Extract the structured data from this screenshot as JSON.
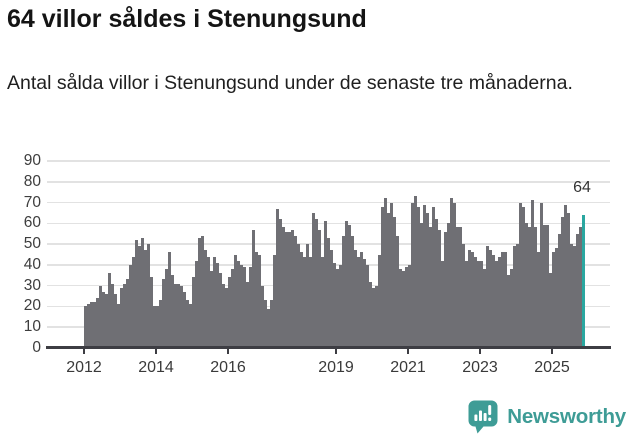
{
  "header": {
    "title": "64 villor såldes i Stenungsund",
    "subtitle": "Antal sålda villor i Stenungsund under de senaste tre månaderna."
  },
  "annotation": {
    "last_value_label": "64"
  },
  "footer": {
    "brand": "Newsworthy",
    "logo_icon": "chart-speech-bubble-icon"
  },
  "colors": {
    "bar": "#6f6f74",
    "highlight": "#2aa7a0",
    "gridline": "#e2e2e2",
    "axis": "#3d3d43",
    "text": "#3a3a3a",
    "brand": "#3e9c96"
  },
  "chart_data": {
    "type": "bar",
    "title": "64 villor såldes i Stenungsund",
    "subtitle": "Antal sålda villor i Stenungsund under de senaste tre månaderna.",
    "xlabel": "",
    "ylabel": "",
    "grid": true,
    "ylim": [
      0,
      93
    ],
    "yticks": [
      0,
      10,
      20,
      30,
      40,
      50,
      60,
      70,
      80,
      90
    ],
    "start_month": "2012-01",
    "end_month": "2025-11",
    "values": [
      20,
      21,
      22,
      22,
      24,
      30,
      27,
      26,
      36,
      31,
      26,
      21,
      29,
      31,
      33,
      40,
      44,
      52,
      49,
      53,
      47,
      50,
      34,
      20,
      20,
      23,
      33,
      38,
      46,
      35,
      31,
      31,
      30,
      27,
      23,
      21,
      34,
      42,
      53,
      54,
      47,
      44,
      37,
      44,
      41,
      36,
      31,
      29,
      34,
      38,
      45,
      42,
      40,
      39,
      32,
      39,
      57,
      46,
      45,
      30,
      23,
      19,
      23,
      45,
      67,
      62,
      58,
      56,
      56,
      57,
      54,
      50,
      46,
      44,
      50,
      44,
      65,
      62,
      57,
      44,
      61,
      53,
      47,
      41,
      38,
      40,
      54,
      61,
      59,
      54,
      47,
      44,
      46,
      43,
      40,
      32,
      29,
      30,
      45,
      68,
      72,
      65,
      70,
      63,
      54,
      38,
      37,
      39,
      40,
      70,
      73,
      68,
      60,
      69,
      65,
      58,
      68,
      62,
      57,
      42,
      56,
      60,
      72,
      70,
      58,
      58,
      50,
      42,
      47,
      46,
      44,
      42,
      42,
      38,
      49,
      47,
      45,
      42,
      44,
      46,
      46,
      35,
      38,
      49,
      50,
      70,
      68,
      60,
      58,
      71,
      58,
      46,
      70,
      59,
      59,
      36,
      46,
      48,
      55,
      63,
      69,
      65,
      50,
      49,
      55,
      58,
      64
    ],
    "highlight_last": {
      "value": 64,
      "label": "64"
    },
    "xticks": [
      {
        "label": "2012",
        "month_index": 0
      },
      {
        "label": "2014",
        "month_index": 24
      },
      {
        "label": "2016",
        "month_index": 48
      },
      {
        "label": "2019",
        "month_index": 84
      },
      {
        "label": "2021",
        "month_index": 108
      },
      {
        "label": "2023",
        "month_index": 132
      },
      {
        "label": "2025",
        "month_index": 156
      }
    ],
    "legend": null
  }
}
